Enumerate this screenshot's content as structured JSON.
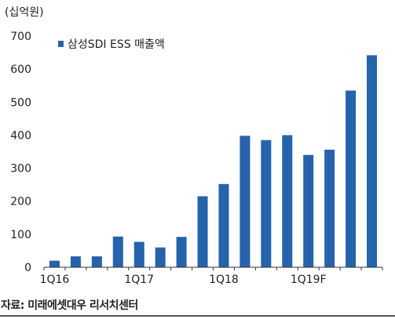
{
  "header": {
    "unit_label": "(십억원)"
  },
  "footer": {
    "source": "자료: 미래에셋대우 리서치센터"
  },
  "chart_data": {
    "type": "bar",
    "title": "",
    "xlabel": "",
    "ylabel": "",
    "ylim": [
      0,
      700
    ],
    "yticks": [
      0,
      100,
      200,
      300,
      400,
      500,
      600,
      700
    ],
    "grid": false,
    "legend_position": "top-left",
    "categories": [
      "1Q16",
      "2Q16",
      "3Q16",
      "4Q16",
      "1Q17",
      "2Q17",
      "3Q17",
      "4Q17",
      "1Q18",
      "2Q18",
      "3Q18",
      "4Q18",
      "1Q19F",
      "2Q19F",
      "3Q19F",
      "4Q19F"
    ],
    "x_tick_labels": [
      {
        "index": 0,
        "text": "1Q16"
      },
      {
        "index": 4,
        "text": "1Q17"
      },
      {
        "index": 8,
        "text": "1Q18"
      },
      {
        "index": 12,
        "text": "1Q19F"
      }
    ],
    "series": [
      {
        "name": "삼성SDI ESS 매출액",
        "color": "#2563ab",
        "values": [
          20,
          33,
          33,
          93,
          77,
          60,
          92,
          215,
          252,
          398,
          385,
          400,
          340,
          356,
          535,
          642
        ]
      }
    ]
  }
}
